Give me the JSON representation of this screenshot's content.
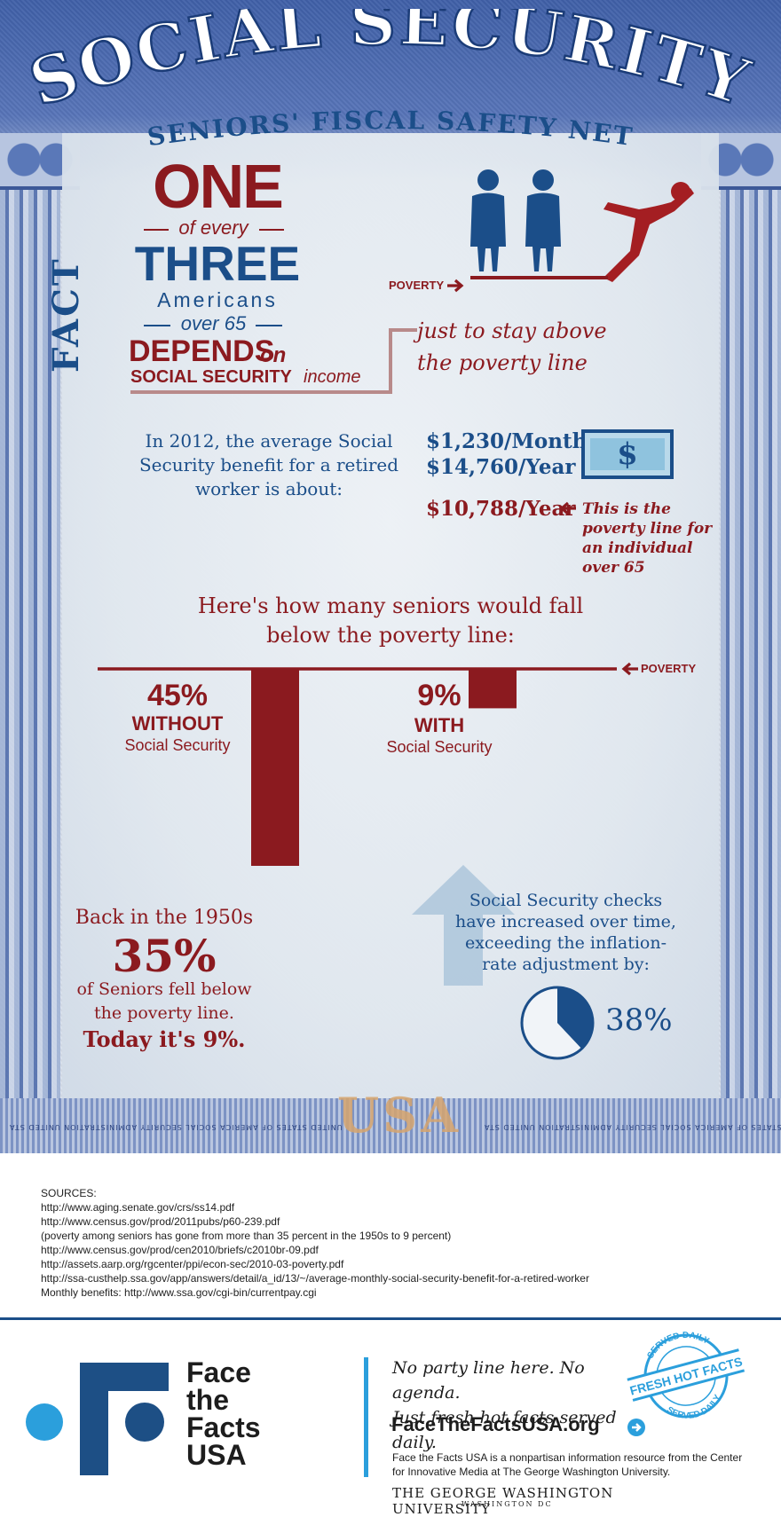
{
  "header": {
    "title": "SOCIAL SECURITY",
    "subtitle": "SENIORS' FISCAL SAFETY NET",
    "fact_label": "FACT"
  },
  "stat": {
    "one": "ONE",
    "of_every": "of every",
    "three": "THREE",
    "americans": "Americans",
    "over_65": "over 65",
    "depends": "DEPENDS",
    "on": "on",
    "social_security": "SOCIAL SECURITY",
    "income": "income",
    "poverty_label": "POVERTY",
    "stay_above": "just to stay above the poverty line"
  },
  "benefit": {
    "text": "In 2012, the average Social Security benefit for a retired worker is about:",
    "month": "$1,230/Month",
    "year": "$14,760/Year",
    "dollar_symbol": "$",
    "poverty_year": "$10,788/Year",
    "poverty_note": "This is the poverty line for an individual over 65"
  },
  "chart": {
    "title": "Here's how many seniors would fall below the poverty line:",
    "poverty_label": "POVERTY"
  },
  "chart_data": {
    "type": "bar",
    "categories": [
      "WITHOUT Social Security",
      "WITH Social Security"
    ],
    "values": [
      45,
      9
    ],
    "unit": "%",
    "bars": [
      {
        "pct": "45%",
        "word": "WITHOUT",
        "sub": "Social Security",
        "value": 45
      },
      {
        "pct": "9%",
        "word": "WITH",
        "sub": "Social Security",
        "value": 9
      }
    ]
  },
  "fifties": {
    "line1": "Back in the 1950s",
    "pct": "35%",
    "line2": "of Seniors fell below the poverty line.",
    "line3": "Today it's 9%."
  },
  "checks": {
    "text": "Social Security checks have increased over time, exceeding the inflation-rate adjustment by:",
    "pct": "38%",
    "value": 38
  },
  "sources": {
    "heading": "SOURCES:",
    "items": [
      "http://www.aging.senate.gov/crs/ss14.pdf",
      "http://www.census.gov/prod/2011pubs/p60-239.pdf",
      "(poverty among seniors has gone from more than 35 percent in the 1950s to 9 percent)",
      "http://www.census.gov/prod/cen2010/briefs/c2010br-09.pdf",
      "http://assets.aarp.org/rgcenter/ppi/econ-sec/2010-03-poverty.pdf",
      "http://ssa-custhelp.ssa.gov/app/answers/detail/a_id/13/~/average-monthly-social-security-benefit-for-a-retired-worker",
      "Monthly benefits:  http://www.ssa.gov/cgi-bin/currentpay.cgi"
    ]
  },
  "footer": {
    "brand_lines": [
      "Face",
      "the",
      "Facts",
      "USA"
    ],
    "tagline_1": "No party line here. No agenda.",
    "tagline_2": "Just fresh hot facts served daily.",
    "url": "FaceTheFactsUSA.org",
    "about": "Face the Facts USA is a nonpartisan information resource from the Center for Innovative Media at The George Washington University.",
    "gwu": "THE GEORGE WASHINGTON UNIVERSITY",
    "gwu_dc": "WASHINGTON DC",
    "stamp_top": "SERVED DAILY",
    "stamp_main": "FRESH HOT FACTS",
    "stamp_bottom": "SERVED DAILY"
  },
  "card": {
    "usa_mark": "USA",
    "strip_text_1": "UNITED STATES OF AMERICA SOCIAL SECURITY ADMINISTRATION UNITED STA",
    "strip_text_2": "UNITED STATES OF AMERICA SOCIAL SECURITY ADMINISTRATION UNITED STA"
  },
  "colors": {
    "red": "#8b1a1f",
    "blue": "#1b4e89",
    "accent_blue": "#2b9fdc"
  }
}
